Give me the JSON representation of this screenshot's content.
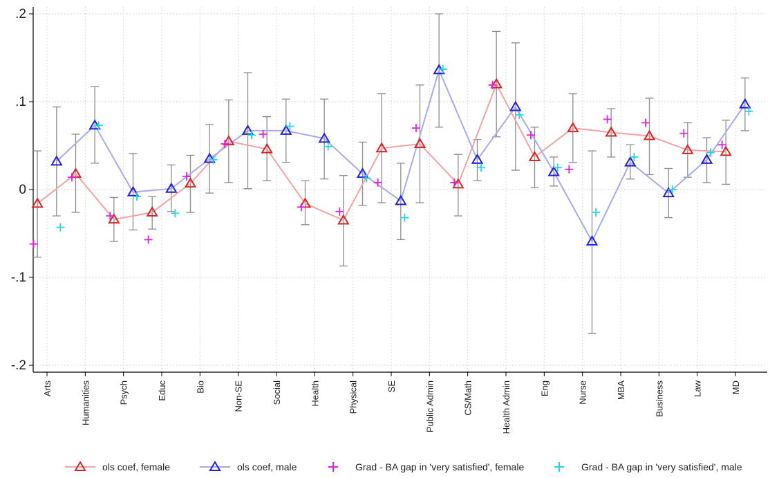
{
  "chart_data": {
    "type": "line",
    "title": "",
    "xlabel": "",
    "ylabel": "",
    "ylim": [
      -0.2,
      0.2
    ],
    "yticks": [
      {
        "value": 0.2,
        "label": ".2"
      },
      {
        "value": 0.1,
        "label": ".1"
      },
      {
        "value": 0.0,
        "label": "0"
      },
      {
        "value": -0.1,
        "label": "-.1"
      },
      {
        "value": -0.2,
        "label": "-.2"
      }
    ],
    "grid": true,
    "legend_position": "bottom",
    "categories": [
      "Arts",
      "Humanities",
      "Psych",
      "Educ",
      "Bio",
      "Non-SE",
      "Social",
      "Health",
      "Physical",
      "SE",
      "Public Admin",
      "CS/Math",
      "Health Admin",
      "Eng",
      "Nurse",
      "MBA",
      "Business",
      "Law",
      "MD"
    ],
    "series": [
      {
        "name": "ols coef, female",
        "marker": "triangle",
        "color": "#d62728",
        "line_color": "#f4a3a3",
        "offset": -0.25,
        "values": [
          -0.016,
          0.018,
          -0.034,
          -0.026,
          0.007,
          0.055,
          0.046,
          -0.016,
          -0.035,
          0.047,
          0.052,
          0.006,
          0.12,
          0.037,
          0.07,
          0.065,
          0.061,
          0.045,
          0.043
        ],
        "ci_low": [
          -0.077,
          -0.026,
          -0.059,
          -0.045,
          -0.026,
          0.008,
          0.01,
          -0.04,
          -0.087,
          -0.015,
          -0.015,
          -0.03,
          0.06,
          0.002,
          0.031,
          0.037,
          0.017,
          0.014,
          0.006
        ],
        "ci_high": [
          0.044,
          0.063,
          -0.009,
          -0.008,
          0.039,
          0.102,
          0.083,
          0.01,
          0.016,
          0.109,
          0.119,
          0.04,
          0.18,
          0.071,
          0.109,
          0.092,
          0.104,
          0.076,
          0.079
        ]
      },
      {
        "name": "ols coef, male",
        "marker": "triangle",
        "color": "#2020d8",
        "line_color": "#a9a9ee",
        "offset": 0.25,
        "values": [
          0.032,
          0.073,
          -0.003,
          0.001,
          0.035,
          0.067,
          0.067,
          0.058,
          0.018,
          -0.013,
          0.136,
          0.034,
          0.094,
          0.02,
          -0.059,
          0.031,
          -0.004,
          0.034,
          0.097
        ],
        "ci_low": [
          -0.03,
          0.03,
          -0.046,
          -0.025,
          -0.004,
          0.001,
          0.031,
          0.012,
          -0.018,
          -0.057,
          0.071,
          0.01,
          0.022,
          0.004,
          -0.164,
          0.012,
          -0.032,
          0.008,
          0.067
        ],
        "ci_high": [
          0.094,
          0.117,
          0.041,
          0.028,
          0.074,
          0.133,
          0.103,
          0.103,
          0.054,
          0.03,
          0.2,
          0.057,
          0.167,
          0.037,
          0.044,
          0.051,
          0.024,
          0.059,
          0.127
        ]
      },
      {
        "name": "Grad - BA gap in 'very satisfied', female",
        "marker": "plus",
        "color": "#e020e0",
        "offset": -0.35,
        "values": [
          -0.062,
          0.014,
          -0.03,
          -0.057,
          0.015,
          0.052,
          0.063,
          -0.02,
          -0.025,
          0.008,
          0.07,
          0.008,
          0.119,
          0.062,
          0.023,
          0.08,
          0.076,
          0.064,
          0.051
        ]
      },
      {
        "name": "Grad - BA gap in 'very satisfied', male",
        "marker": "plus",
        "color": "#20d8e8",
        "offset": 0.35,
        "values": [
          -0.043,
          0.073,
          -0.008,
          -0.027,
          0.034,
          0.062,
          0.072,
          0.049,
          0.013,
          -0.032,
          0.137,
          0.025,
          0.085,
          0.025,
          -0.026,
          0.037,
          0.0,
          0.042,
          0.089
        ]
      }
    ]
  },
  "legend": {
    "items": [
      {
        "label": "ols coef, female"
      },
      {
        "label": "ols coef, male"
      },
      {
        "label": "Grad - BA gap in 'very satisfied', female"
      },
      {
        "label": "Grad - BA gap in 'very satisfied', male"
      }
    ]
  }
}
